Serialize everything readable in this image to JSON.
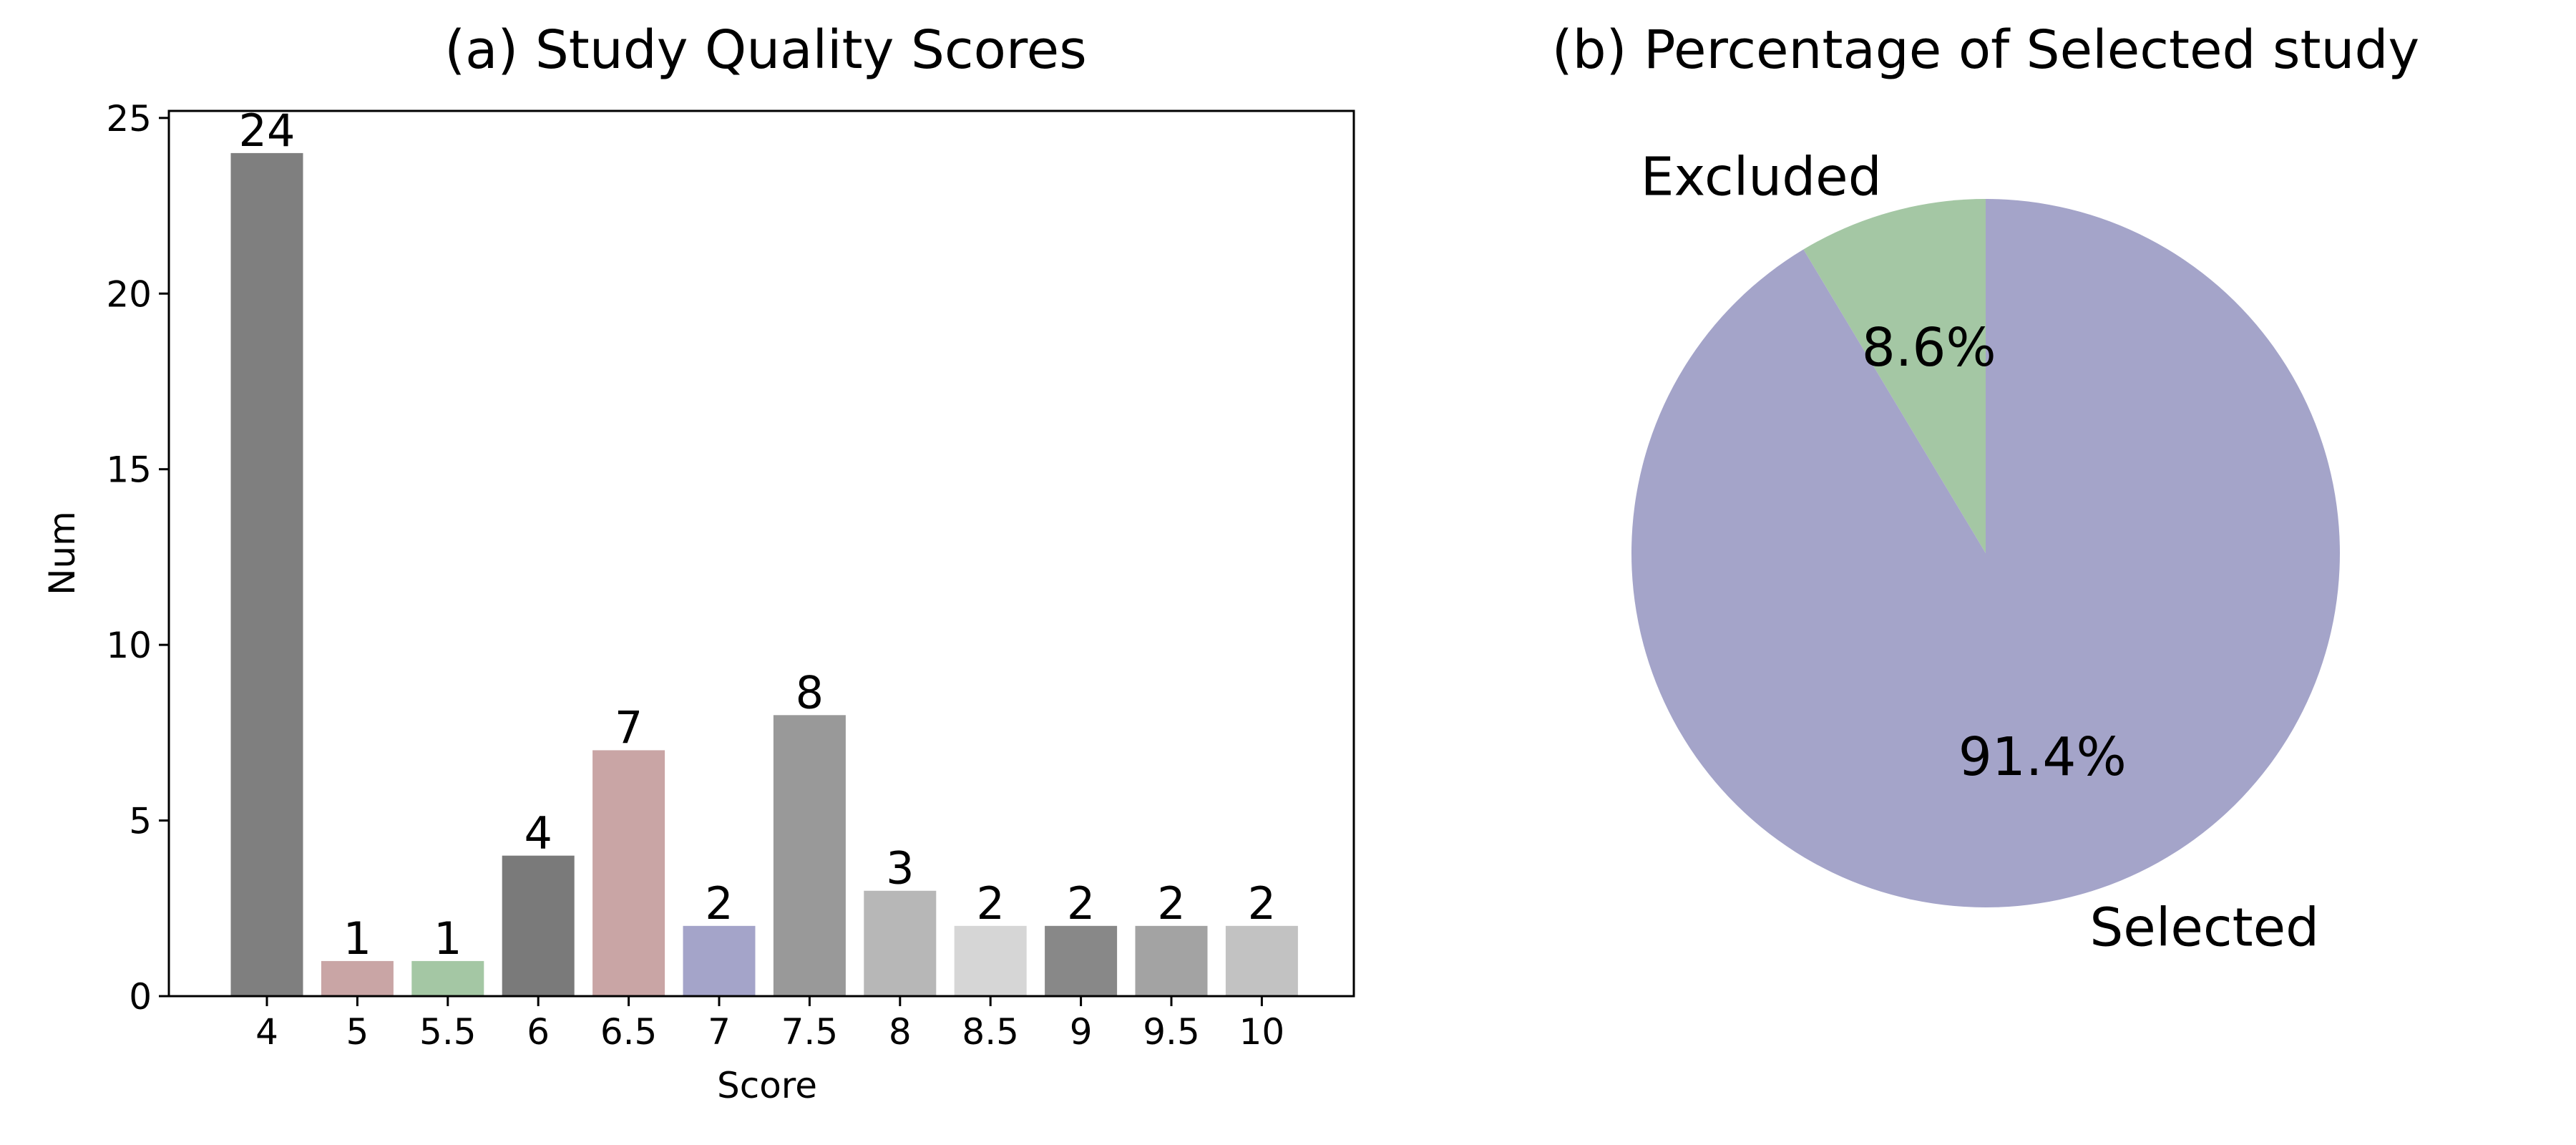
{
  "chart_data": [
    {
      "type": "bar",
      "title": "(a) Study Quality Scores",
      "xlabel": "Score",
      "ylabel": "Num",
      "ylim": [
        0,
        25.2
      ],
      "yticks": [
        0,
        5,
        10,
        15,
        20,
        25
      ],
      "categories": [
        "4",
        "5",
        "5.5",
        "6",
        "6.5",
        "7",
        "7.5",
        "8",
        "8.5",
        "9",
        "9.5",
        "10"
      ],
      "values": [
        24,
        1,
        1,
        4,
        7,
        2,
        8,
        3,
        2,
        2,
        2,
        2
      ],
      "colors": [
        "#7f7f7f",
        "#c9a5a5",
        "#a4c7a4",
        "#7a7a7a",
        "#c9a5a5",
        "#a4a4c9",
        "#999999",
        "#b7b7b7",
        "#d6d6d6",
        "#888888",
        "#a3a3a3",
        "#c2c2c2"
      ],
      "data_labels": true,
      "grid": false
    },
    {
      "type": "pie",
      "title": "(b) Percentage of Selected study",
      "labels": [
        "Excluded",
        "Selected"
      ],
      "values": [
        8.6,
        91.4
      ],
      "pct_labels": [
        "8.6%",
        "91.4%"
      ],
      "colors": [
        "#a4c7a4",
        "#a4a4c9"
      ],
      "start_angle_deg": 90,
      "direction": "counterclockwise"
    }
  ]
}
